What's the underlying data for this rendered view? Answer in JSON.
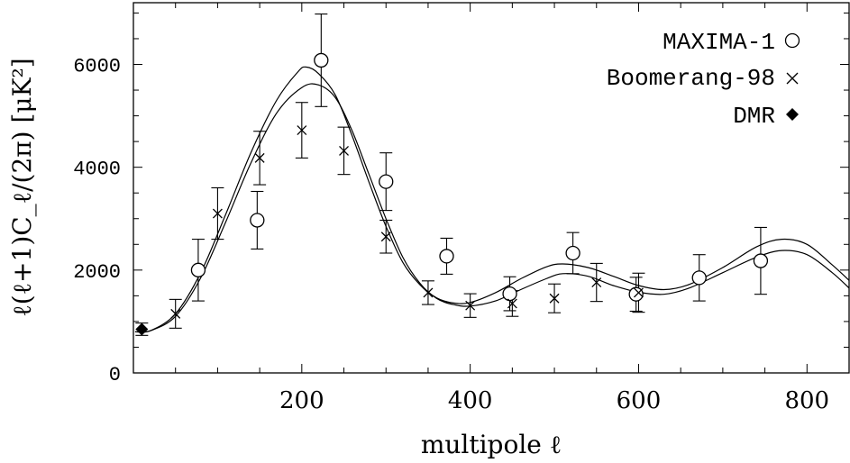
{
  "chart_data": {
    "type": "scatter",
    "title": "",
    "xlabel": "multipole ℓ",
    "ylabel": "ℓ(ℓ+1)C_ℓ/(2π) [μK²]",
    "xlim": [
      0,
      850
    ],
    "ylim": [
      0,
      7200
    ],
    "x_ticks": [
      200,
      400,
      600,
      800
    ],
    "y_ticks": [
      0,
      2000,
      4000,
      6000
    ],
    "grid": false,
    "legend_position": "top-right",
    "series": [
      {
        "name": "MAXIMA-1",
        "marker": "circle",
        "points": [
          {
            "x": 77,
            "y": 2000,
            "err": 600
          },
          {
            "x": 147,
            "y": 2970,
            "err": 560
          },
          {
            "x": 223,
            "y": 6080,
            "err": 900
          },
          {
            "x": 300,
            "y": 3720,
            "err": 560
          },
          {
            "x": 372,
            "y": 2270,
            "err": 350
          },
          {
            "x": 447,
            "y": 1540,
            "err": 330
          },
          {
            "x": 522,
            "y": 2330,
            "err": 400
          },
          {
            "x": 597,
            "y": 1530,
            "err": 330
          },
          {
            "x": 672,
            "y": 1850,
            "err": 450
          },
          {
            "x": 745,
            "y": 2180,
            "err": 650
          }
        ]
      },
      {
        "name": "Boomerang-98",
        "marker": "cross",
        "points": [
          {
            "x": 50,
            "y": 1150,
            "err": 280
          },
          {
            "x": 100,
            "y": 3100,
            "err": 500
          },
          {
            "x": 150,
            "y": 4180,
            "err": 520
          },
          {
            "x": 200,
            "y": 4720,
            "err": 540
          },
          {
            "x": 250,
            "y": 4320,
            "err": 460
          },
          {
            "x": 300,
            "y": 2650,
            "err": 320
          },
          {
            "x": 350,
            "y": 1560,
            "err": 230
          },
          {
            "x": 400,
            "y": 1310,
            "err": 230
          },
          {
            "x": 450,
            "y": 1350,
            "err": 250
          },
          {
            "x": 500,
            "y": 1450,
            "err": 280
          },
          {
            "x": 550,
            "y": 1760,
            "err": 370
          },
          {
            "x": 600,
            "y": 1560,
            "err": 380
          }
        ]
      },
      {
        "name": "DMR",
        "marker": "diamond",
        "points": [
          {
            "x": 10,
            "y": 850,
            "err": 120
          }
        ]
      }
    ],
    "model_curves": [
      {
        "points": [
          [
            2,
            800
          ],
          [
            20,
            820
          ],
          [
            50,
            1150
          ],
          [
            80,
            1950
          ],
          [
            110,
            3100
          ],
          [
            140,
            4300
          ],
          [
            170,
            5300
          ],
          [
            195,
            5850
          ],
          [
            205,
            5950
          ],
          [
            220,
            5820
          ],
          [
            240,
            5400
          ],
          [
            260,
            4600
          ],
          [
            280,
            3700
          ],
          [
            300,
            2850
          ],
          [
            320,
            2150
          ],
          [
            340,
            1720
          ],
          [
            360,
            1460
          ],
          [
            380,
            1360
          ],
          [
            400,
            1370
          ],
          [
            430,
            1560
          ],
          [
            460,
            1830
          ],
          [
            490,
            2060
          ],
          [
            510,
            2120
          ],
          [
            540,
            2050
          ],
          [
            570,
            1880
          ],
          [
            600,
            1700
          ],
          [
            630,
            1620
          ],
          [
            660,
            1720
          ],
          [
            700,
            2050
          ],
          [
            740,
            2450
          ],
          [
            770,
            2600
          ],
          [
            800,
            2500
          ],
          [
            830,
            2100
          ],
          [
            850,
            1800
          ]
        ]
      },
      {
        "points": [
          [
            2,
            800
          ],
          [
            20,
            820
          ],
          [
            50,
            1100
          ],
          [
            80,
            1850
          ],
          [
            110,
            2950
          ],
          [
            140,
            4100
          ],
          [
            170,
            5050
          ],
          [
            200,
            5550
          ],
          [
            220,
            5600
          ],
          [
            240,
            5350
          ],
          [
            260,
            4700
          ],
          [
            280,
            3850
          ],
          [
            300,
            3000
          ],
          [
            320,
            2250
          ],
          [
            340,
            1750
          ],
          [
            360,
            1450
          ],
          [
            380,
            1330
          ],
          [
            400,
            1300
          ],
          [
            430,
            1400
          ],
          [
            460,
            1620
          ],
          [
            490,
            1830
          ],
          [
            510,
            1930
          ],
          [
            540,
            1880
          ],
          [
            570,
            1700
          ],
          [
            600,
            1570
          ],
          [
            630,
            1530
          ],
          [
            660,
            1650
          ],
          [
            700,
            1950
          ],
          [
            740,
            2250
          ],
          [
            770,
            2380
          ],
          [
            800,
            2300
          ],
          [
            830,
            1950
          ],
          [
            850,
            1650
          ]
        ]
      }
    ]
  }
}
